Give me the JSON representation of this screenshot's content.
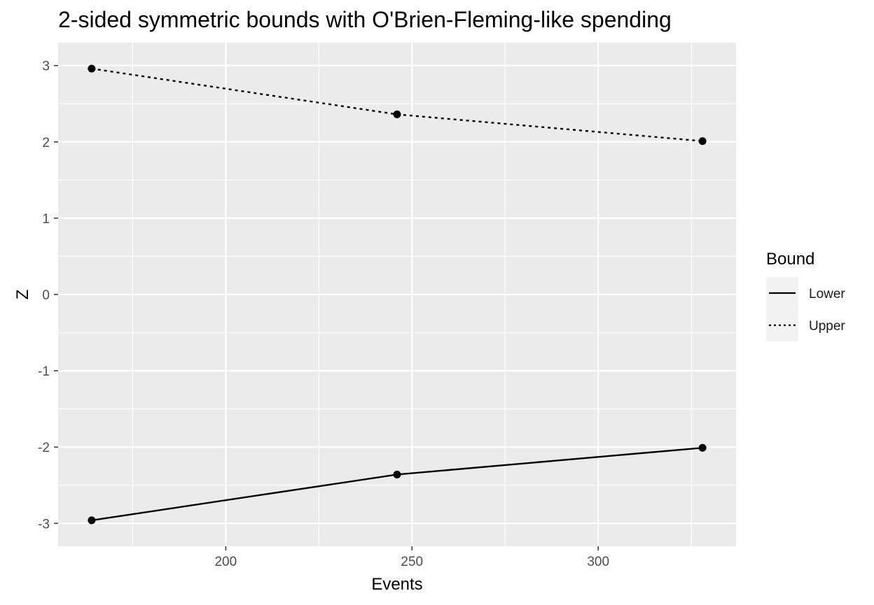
{
  "chart_data": {
    "type": "line",
    "title": "2-sided symmetric bounds with O'Brien-Fleming-like spending",
    "xlabel": "Events",
    "ylabel": "Z",
    "xlim": [
      155,
      337
    ],
    "ylim": [
      -3.3,
      3.3
    ],
    "x_ticks": [
      200,
      250,
      300
    ],
    "x_tick_labels": [
      "200",
      "250",
      "300"
    ],
    "y_ticks": [
      3,
      2,
      1,
      0,
      -1,
      -2,
      -3
    ],
    "y_tick_labels": [
      "3",
      "2",
      "1",
      "0",
      "-1",
      "-2",
      "-3"
    ],
    "grid": true,
    "legend": {
      "title": "Bound",
      "placement": "right"
    },
    "series": [
      {
        "name": "Lower",
        "linetype": "solid",
        "x": [
          164,
          246,
          328
        ],
        "y": [
          -2.96,
          -2.36,
          -2.01
        ]
      },
      {
        "name": "Upper",
        "linetype": "dotted",
        "x": [
          164,
          246,
          328
        ],
        "y": [
          2.96,
          2.36,
          2.01
        ]
      }
    ],
    "colors": {
      "panel": "#ebebeb",
      "grid": "#ffffff",
      "line": "#000000",
      "legend_key_bg": "#f2f2f2"
    }
  }
}
